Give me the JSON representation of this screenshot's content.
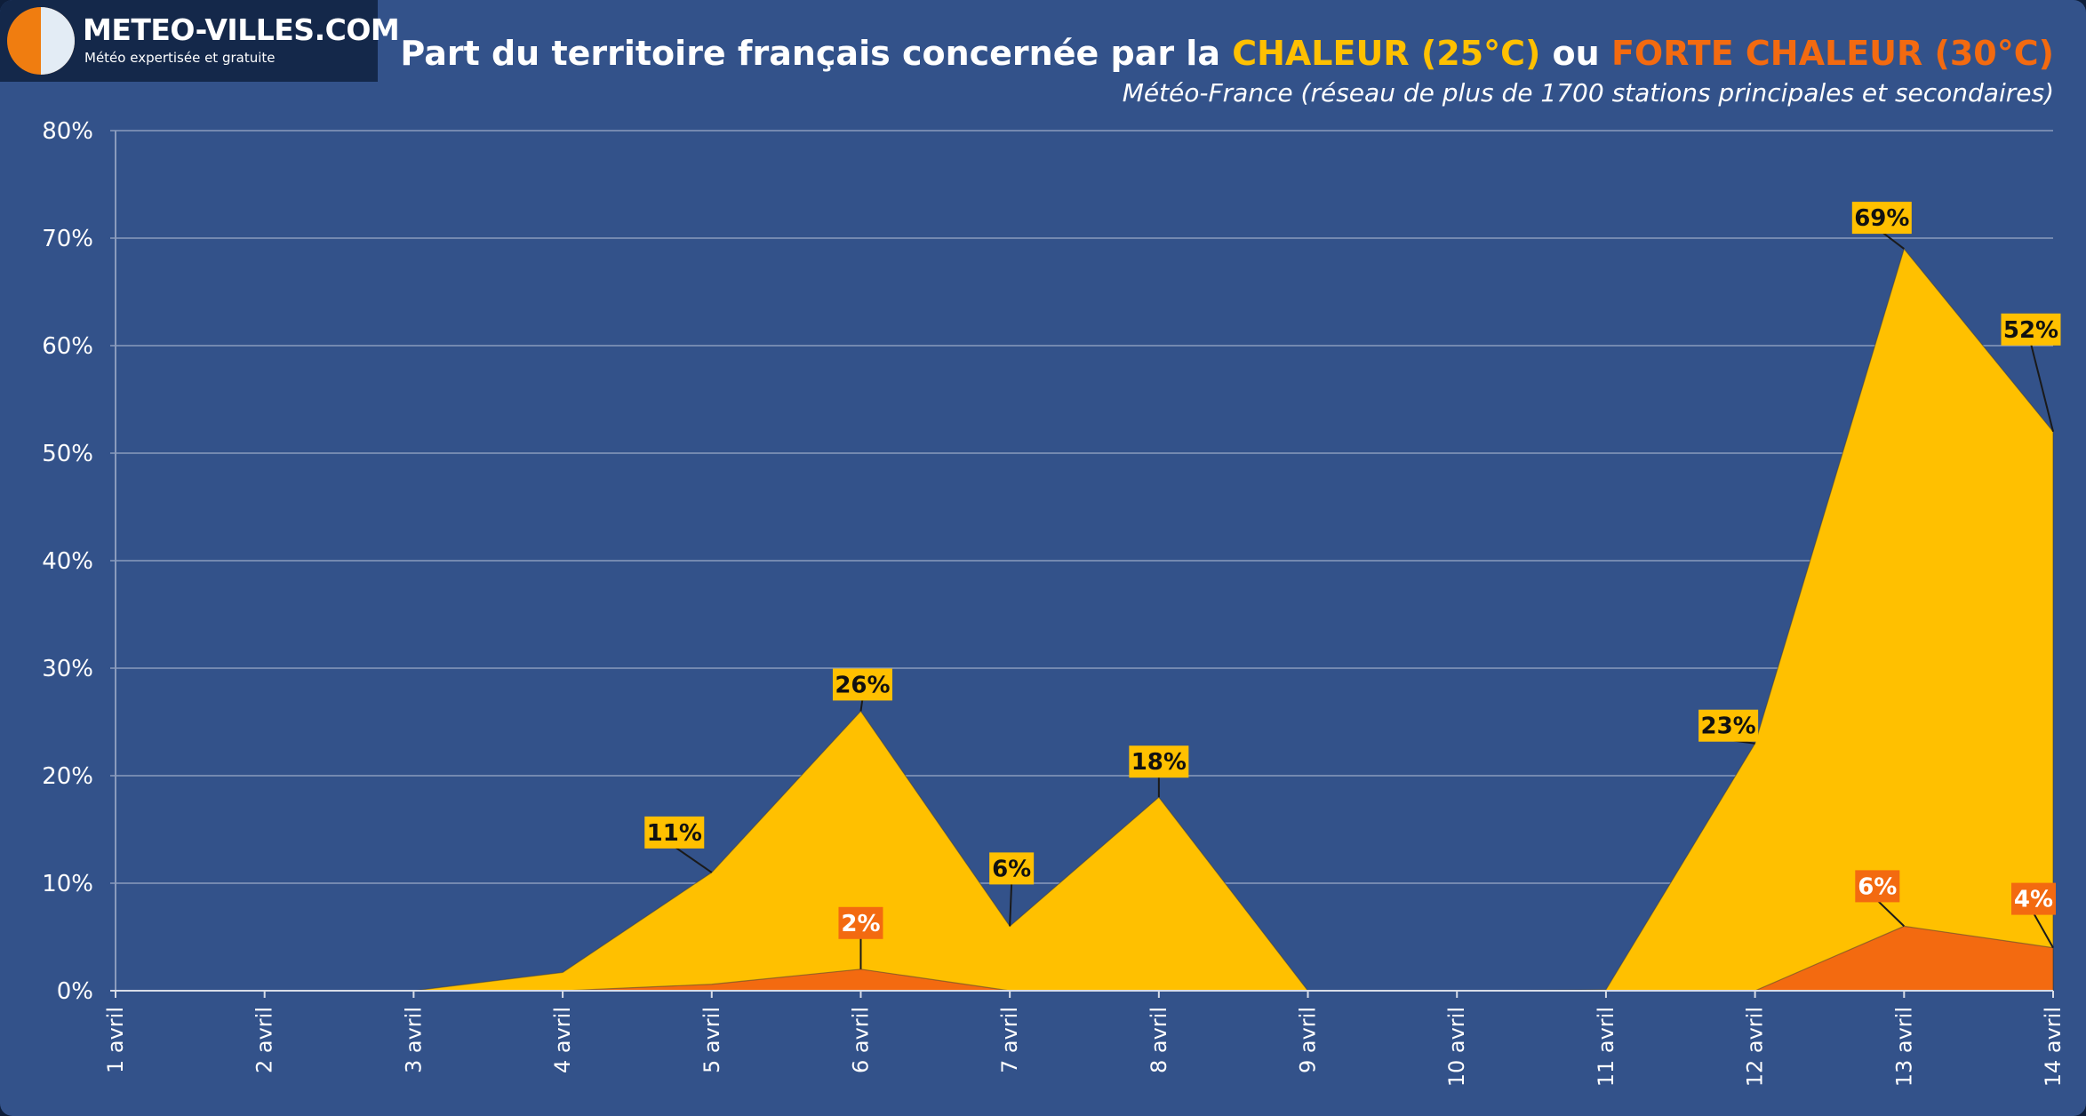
{
  "header": {
    "logo_title": "METEO-VILLES.COM",
    "logo_subtitle": "Météo expertisée et gratuite",
    "title_prefix": "Part du territoire français concernée par la ",
    "title_series1": "CHALEUR (25°C)",
    "title_mid": " ou ",
    "title_series2": "FORTE CHALEUR (30°C)",
    "subtitle": "Météo-France (réseau de plus de 1700 stations principales et secondaires)"
  },
  "colors": {
    "background": "#33528a",
    "logo_bg": "#14284a",
    "chaleur": "#ffc000",
    "forte_chaleur": "#f36a10",
    "grid": "#8a9bbd",
    "text": "#ffffff"
  },
  "chart_data": {
    "type": "area",
    "title": "Part du territoire français concernée par la CHALEUR (25°C) ou FORTE CHALEUR (30°C)",
    "subtitle": "Météo-France (réseau de plus de 1700 stations principales et secondaires)",
    "categories": [
      "1 avril",
      "2 avril",
      "3 avril",
      "4 avril",
      "5 avril",
      "6 avril",
      "7 avril",
      "8 avril",
      "9 avril",
      "10 avril",
      "11 avril",
      "12 avril",
      "13 avril",
      "14 avril"
    ],
    "series": [
      {
        "name": "CHALEUR (25°C)",
        "color": "#ffc000",
        "values": [
          0,
          0,
          0,
          1.7,
          11,
          26,
          6,
          18,
          0,
          0,
          0.1,
          23,
          69,
          52
        ],
        "data_labels": [
          "",
          "",
          "",
          "",
          "11%",
          "26%",
          "6%",
          "18%",
          "",
          "",
          "",
          "23%",
          "69%",
          "52%"
        ]
      },
      {
        "name": "FORTE CHALEUR (30°C)",
        "color": "#f36a10",
        "values": [
          0,
          0,
          0,
          0,
          0.6,
          2,
          0,
          0,
          0,
          0,
          0,
          0,
          6,
          4
        ],
        "data_labels": [
          "",
          "",
          "",
          "",
          "",
          "2%",
          "",
          "",
          "",
          "",
          "",
          "",
          "6%",
          "4%"
        ]
      }
    ],
    "y_ticks": [
      "0%",
      "10%",
      "20%",
      "30%",
      "40%",
      "50%",
      "60%",
      "70%",
      "80%"
    ],
    "ylim": [
      0,
      80
    ],
    "grid": true,
    "legend": "in title"
  }
}
